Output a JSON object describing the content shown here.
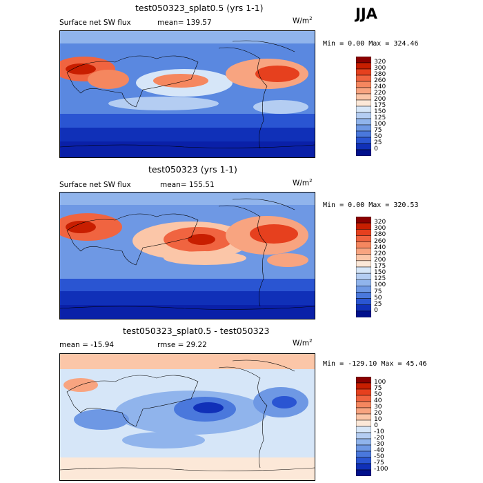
{
  "season": "JJA",
  "units": "W/m",
  "units_sup": "2",
  "chart_data": [
    {
      "type": "heatmap",
      "title": "test050323_splat0.5 (yrs 1-1)",
      "left_label": "Surface net SW flux",
      "right_label": "mean= 139.57",
      "stats": "Min =    0.00 Max = 324.46",
      "colorbar_levels": [
        "320",
        "300",
        "280",
        "260",
        "240",
        "220",
        "200",
        "175",
        "150",
        "125",
        "100",
        "75",
        "50",
        "25",
        "0"
      ],
      "colorbar_colors": [
        "#8b0000",
        "#c81e00",
        "#e6401e",
        "#f06440",
        "#f5875f",
        "#f8a480",
        "#fbc6a8",
        "#fce8d8",
        "#d6e6f8",
        "#b4cdf2",
        "#90b4ec",
        "#6e98e4",
        "#4a78dc",
        "#2a55d2",
        "#1030b8",
        "#00108c"
      ]
    },
    {
      "type": "heatmap",
      "title": "test050323 (yrs 1-1)",
      "left_label": "Surface net SW flux",
      "right_label": "mean= 155.51",
      "stats": "Min =    0.00 Max = 320.53",
      "colorbar_levels": [
        "320",
        "300",
        "280",
        "260",
        "240",
        "220",
        "200",
        "175",
        "150",
        "125",
        "100",
        "75",
        "50",
        "25",
        "0"
      ],
      "colorbar_colors": [
        "#8b0000",
        "#c81e00",
        "#e6401e",
        "#f06440",
        "#f5875f",
        "#f8a480",
        "#fbc6a8",
        "#fce8d8",
        "#d6e6f8",
        "#b4cdf2",
        "#90b4ec",
        "#6e98e4",
        "#4a78dc",
        "#2a55d2",
        "#1030b8",
        "#00108c"
      ]
    },
    {
      "type": "heatmap",
      "title": "test050323_splat0.5 - test050323",
      "left_label": "mean = -15.94",
      "right_label": "rmse =  29.22",
      "stats": "Min = -129.10 Max =  45.46",
      "colorbar_levels": [
        "100",
        "75",
        "50",
        "40",
        "30",
        "20",
        "10",
        "0",
        "-10",
        "-20",
        "-30",
        "-40",
        "-50",
        "-75",
        "-100"
      ],
      "colorbar_colors": [
        "#8b0000",
        "#c81e00",
        "#e6401e",
        "#f06440",
        "#f5875f",
        "#f8a480",
        "#fbc6a8",
        "#fce8d8",
        "#d6e6f8",
        "#b4cdf2",
        "#90b4ec",
        "#6e98e4",
        "#4a78dc",
        "#2a55d2",
        "#1030b8",
        "#00108c"
      ]
    }
  ]
}
